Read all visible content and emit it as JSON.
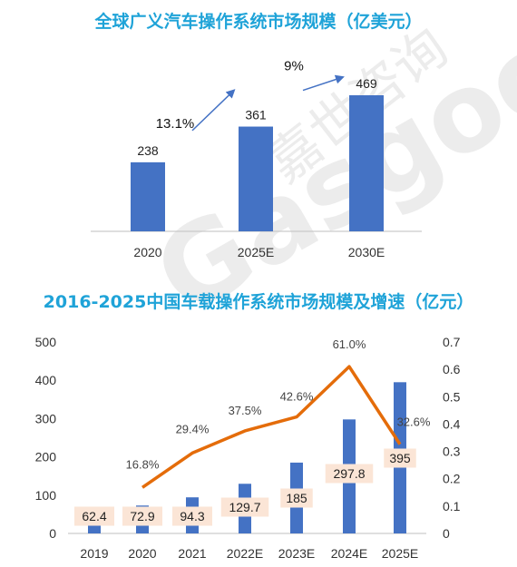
{
  "page": {
    "title_top": "全球广义汽车操作系统市场规模（亿美元）",
    "title_bottom": "2016-2025中国车载操作系统市场规模及增速（亿元）",
    "watermark_text": "嘉世咨询",
    "watermark_latin": "Gasgoo"
  },
  "colors": {
    "title": "#1fa3d8",
    "bar": "#4472c4",
    "line": "#e46c0a",
    "label_box": "#fbe5d6",
    "arrow": "#4472c4"
  },
  "chart_data": [
    {
      "type": "bar",
      "title": "全球广义汽车操作系统市场规模（亿美元）",
      "categories": [
        "2020",
        "2025E",
        "2030E"
      ],
      "values": [
        238,
        361,
        469
      ],
      "value_labels": [
        "238",
        "361",
        "469"
      ],
      "growth_annotations": [
        "13.1%",
        "9%"
      ],
      "ylim": [
        0,
        500
      ],
      "grid": false,
      "legend": "none"
    },
    {
      "type": "bar+line",
      "title": "2016-2025中国车载操作系统市场规模及增速（亿元）",
      "categories": [
        "2019",
        "2020",
        "2021",
        "2022E",
        "2023E",
        "2024E",
        "2025E"
      ],
      "series": [
        {
          "type": "bar",
          "axis": "left",
          "values": [
            62.4,
            72.9,
            94.3,
            129.7,
            185,
            297.8,
            395
          ],
          "labels": [
            "62.4",
            "72.9",
            "94.3",
            "129.7",
            "185",
            "297.8",
            "395"
          ]
        },
        {
          "type": "line",
          "axis": "right",
          "values": [
            null,
            0.168,
            0.294,
            0.375,
            0.426,
            0.61,
            0.326
          ],
          "labels": [
            "",
            "16.8%",
            "29.4%",
            "37.5%",
            "42.6%",
            "61.0%",
            "32.6%"
          ]
        }
      ],
      "y_left_ticks": [
        "0",
        "100",
        "200",
        "300",
        "400",
        "500"
      ],
      "y_left_range": [
        0,
        500
      ],
      "y_right_ticks": [
        "0",
        "0.1",
        "0.2",
        "0.3",
        "0.4",
        "0.5",
        "0.6",
        "0.7"
      ],
      "y_right_range": [
        0,
        0.7
      ],
      "grid": false,
      "legend": "none"
    }
  ]
}
